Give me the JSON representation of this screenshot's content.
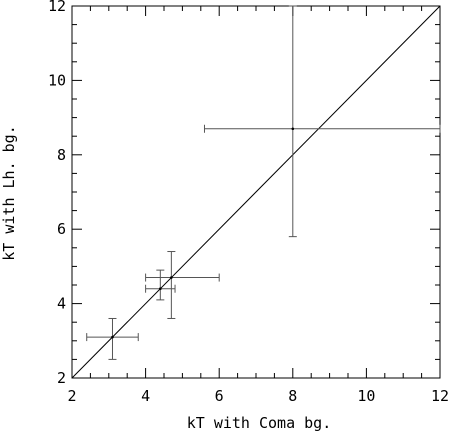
{
  "chart_data": {
    "type": "scatter",
    "title": "",
    "xlabel": "kT with Coma bg.",
    "ylabel": "kT with Lh. bg.",
    "xlim": [
      2,
      12
    ],
    "ylim": [
      2,
      12
    ],
    "grid": false,
    "legend": "none",
    "x_ticks": [
      2,
      4,
      6,
      8,
      10,
      12
    ],
    "y_ticks": [
      2,
      4,
      6,
      8,
      10,
      12
    ],
    "x_tick_labels": [
      "2",
      "4",
      "6",
      "8",
      "10",
      "12"
    ],
    "y_tick_labels": [
      "2",
      "4",
      "6",
      "8",
      "10",
      "12"
    ],
    "reference_line": {
      "from": [
        2,
        2
      ],
      "to": [
        12,
        12
      ]
    },
    "points": [
      {
        "x": 3.1,
        "y": 3.1,
        "xerr": [
          2.4,
          3.8
        ],
        "yerr": [
          2.5,
          3.6
        ]
      },
      {
        "x": 4.4,
        "y": 4.4,
        "xerr": [
          4.0,
          4.8
        ],
        "yerr": [
          4.1,
          4.9
        ]
      },
      {
        "x": 4.7,
        "y": 4.7,
        "xerr": [
          4.0,
          6.0
        ],
        "yerr": [
          3.6,
          5.4
        ]
      },
      {
        "x": 8.0,
        "y": 8.7,
        "xerr": [
          5.6,
          12.0
        ],
        "yerr": [
          5.8,
          12.0
        ]
      }
    ],
    "colors": {
      "axis": "#000000",
      "line": "#000000",
      "errorbar": "#555555"
    }
  }
}
